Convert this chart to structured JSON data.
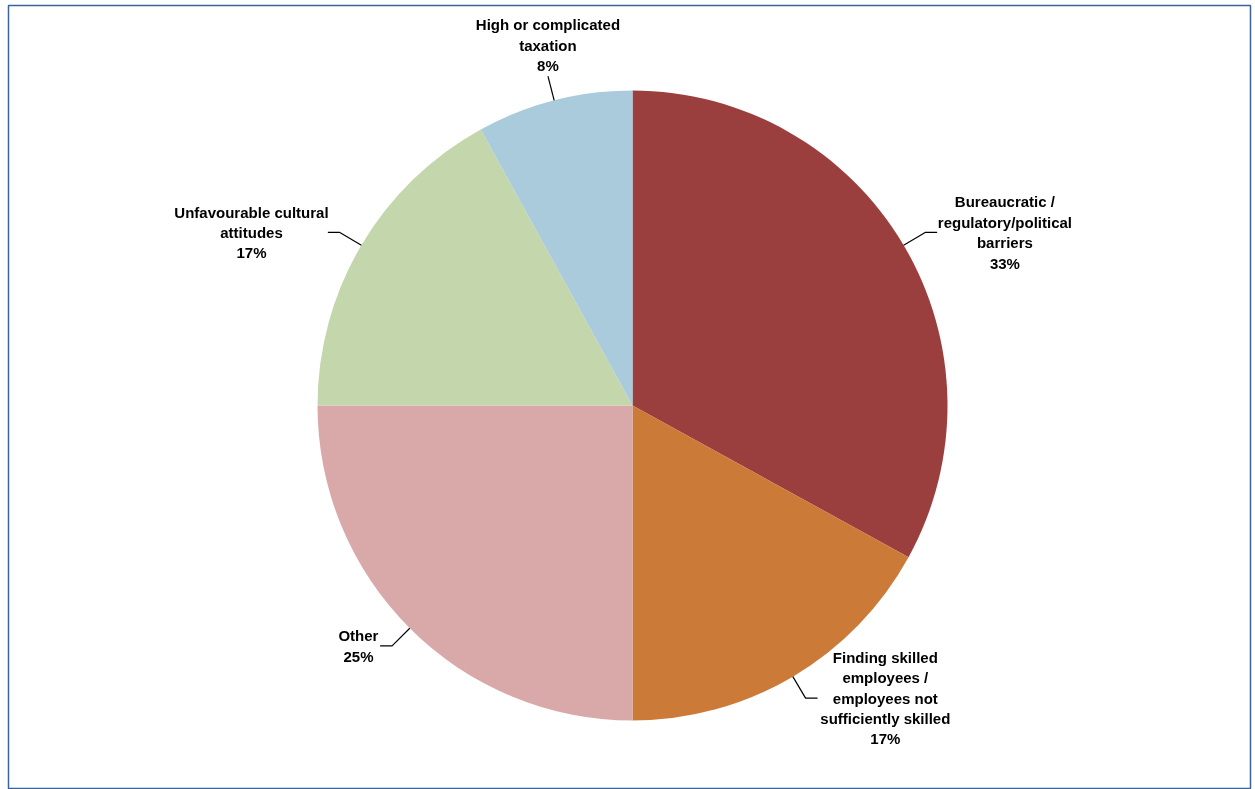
{
  "chart_data": {
    "type": "pie",
    "categories": [
      "Bureaucratic / regulatory/political barriers",
      "Finding skilled employees / employees not sufficiently skilled",
      "Other",
      "Unfavourable cultural attitudes",
      "High or complicated taxation"
    ],
    "values": [
      33,
      17,
      25,
      17,
      8
    ],
    "colors": [
      "#9b3f3e",
      "#cc7a38",
      "#d9a9aa",
      "#c4d6ab",
      "#aacbdc"
    ],
    "value_labels": [
      "33%",
      "17%",
      "25%",
      "17%",
      "8%"
    ]
  }
}
